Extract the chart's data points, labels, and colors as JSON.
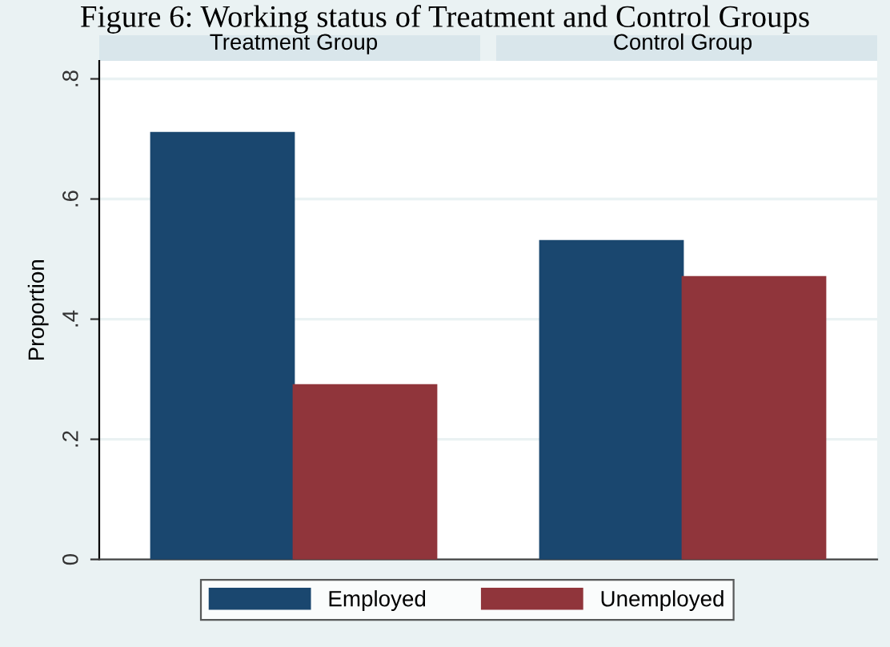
{
  "chart_data": {
    "type": "bar",
    "ylabel": "Proportion",
    "annotations": [
      "Figure 6: Working status of Treatment and Control Groups"
    ],
    "categories": [
      "Treatment Group",
      "Control Group"
    ],
    "series": [
      {
        "name": "Employed",
        "color": "#1a476f",
        "values": [
          0.71,
          0.53
        ]
      },
      {
        "name": "Unemployed",
        "color": "#90353b",
        "values": [
          0.29,
          0.47
        ]
      }
    ],
    "ylim": [
      0,
      0.83
    ],
    "yticks": [
      0,
      {
        "value": 0.2,
        "label": ".2"
      },
      {
        "value": 0.4,
        "label": ".4"
      },
      {
        "value": 0.6,
        "label": ".6"
      },
      {
        "value": 0.8,
        "label": ".8"
      }
    ],
    "grid": "y",
    "legend": "bottom"
  }
}
